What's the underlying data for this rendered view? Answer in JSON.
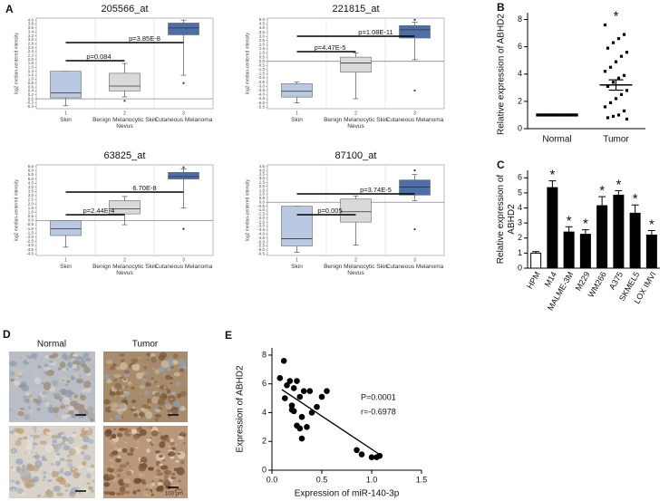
{
  "chart_data": [
    {
      "type": "box",
      "panel_label": "A",
      "title": "205566_at",
      "ylabel": "log2 median-centered intensity",
      "categories": [
        "Skin",
        "Benign Melanocytic Skin Nevus",
        "Cutaneous Melanoma"
      ],
      "category_numbers": [
        1,
        2,
        3
      ],
      "colors": [
        "#b9c9e2",
        "#d9d9d9",
        "#4d6fa9"
      ],
      "boxes": [
        {
          "min": -0.35,
          "q1": 0.05,
          "median": 0.3,
          "q3": 1.4,
          "max": 1.4,
          "outliers": []
        },
        {
          "min": 0.1,
          "q1": 0.4,
          "median": 0.65,
          "q3": 1.3,
          "max": 1.8,
          "outliers": [
            -0.1
          ]
        },
        {
          "min": 1.2,
          "q1": 3.25,
          "median": 3.6,
          "q3": 3.85,
          "max": 4.0,
          "outliers": [
            0.8
          ]
        }
      ],
      "ylim": [
        -0.5,
        4.1
      ],
      "yticks": [
        -0.4,
        -0.2,
        {
          "value": 0,
          "label": "0.0"
        },
        0.2,
        0.4,
        0.6,
        0.8,
        {
          "value": 1,
          "label": "1.0"
        },
        1.2,
        1.4,
        1.6,
        1.8,
        {
          "value": 2,
          "label": "2.0"
        },
        2.2,
        2.4,
        2.6,
        2.8,
        {
          "value": 3,
          "label": "3.0"
        },
        3.2,
        3.4,
        3.6,
        3.8,
        {
          "value": 4,
          "label": "4.0"
        }
      ],
      "reference_line": 0,
      "annotations": [
        "p=0.084",
        "p=3.85E-8"
      ]
    },
    {
      "type": "box",
      "title": "221815_at",
      "ylabel": "log2 median-centered intensity",
      "categories": [
        "Skin",
        "Benign Melanocytic Skin Nevus",
        "Cutaneous Melanoma"
      ],
      "category_numbers": [
        1,
        2,
        3
      ],
      "colors": [
        "#b9c9e2",
        "#d9d9d9",
        "#4d6fa9"
      ],
      "boxes": [
        {
          "min": -5.0,
          "q1": -4.3,
          "median": -3.6,
          "q3": -2.7,
          "max": -2.5,
          "outliers": []
        },
        {
          "min": -4.5,
          "q1": -1.3,
          "median": -0.2,
          "q3": 0.5,
          "max": 1.0,
          "outliers": []
        },
        {
          "min": 0.2,
          "q1": 2.8,
          "median": 3.8,
          "q3": 4.3,
          "max": 4.7,
          "outliers": [
            -3.5,
            5.0
          ]
        }
      ],
      "ylim": [
        -5.7,
        5.2
      ],
      "yticks": [
        -5.5,
        {
          "value": -5,
          "label": "-5.0"
        },
        -4.5,
        {
          "value": -4,
          "label": "-4.0"
        },
        -3.5,
        {
          "value": -3,
          "label": "-3.0"
        },
        -2.5,
        {
          "value": -2,
          "label": "-2.0"
        },
        -1.5,
        {
          "value": -1,
          "label": "-1.0"
        },
        -0.5,
        {
          "value": 0,
          "label": "0.0"
        },
        0.5,
        {
          "value": 1,
          "label": "1.0"
        },
        1.5,
        {
          "value": 2,
          "label": "2.0"
        },
        2.5,
        {
          "value": 3,
          "label": "3.0"
        },
        3.5,
        {
          "value": 4,
          "label": "4.0"
        },
        4.5,
        {
          "value": 5,
          "label": "5.0"
        }
      ],
      "reference_line": 0,
      "annotations": [
        "p=4.47E-5",
        "p=1.08E-11"
      ]
    },
    {
      "type": "box",
      "title": "63825_at",
      "ylabel": "log2 median-centered intensity",
      "categories": [
        "Skin",
        "Benign Melanocytic Skin Nevus",
        "Cutaneous Melanoma"
      ],
      "category_numbers": [
        1,
        2,
        3
      ],
      "colors": [
        "#b9c9e2",
        "#d9d9d9",
        "#4d6fa9"
      ],
      "boxes": [
        {
          "min": -3.2,
          "q1": -1.8,
          "median": -1.0,
          "q3": 0.0,
          "max": 0.0,
          "outliers": []
        },
        {
          "min": -0.5,
          "q1": 0.8,
          "median": 1.4,
          "q3": 2.4,
          "max": 2.9,
          "outliers": []
        },
        {
          "min": 1.5,
          "q1": 5.0,
          "median": 5.3,
          "q3": 5.8,
          "max": 6.2,
          "outliers": [
            -1.0,
            6.4
          ]
        }
      ],
      "ylim": [
        -4.2,
        6.7
      ],
      "yticks": [
        {
          "value": -4,
          "label": "-4.0"
        },
        -3.5,
        {
          "value": -3,
          "label": "-3.0"
        },
        -2.5,
        {
          "value": -2,
          "label": "-2.0"
        },
        -1.5,
        {
          "value": -1,
          "label": "-1.0"
        },
        -0.5,
        {
          "value": 0,
          "label": "0.0"
        },
        0.5,
        {
          "value": 1,
          "label": "1.0"
        },
        1.5,
        {
          "value": 2,
          "label": "2.0"
        },
        2.5,
        {
          "value": 3,
          "label": "3.0"
        },
        3.5,
        {
          "value": 4,
          "label": "4.0"
        },
        4.5,
        {
          "value": 5,
          "label": "5.0"
        },
        5.5,
        {
          "value": 6,
          "label": "6.0"
        },
        6.5
      ],
      "reference_line": 0,
      "annotations": [
        "p=2.44E-4",
        "6.70E-8"
      ]
    },
    {
      "type": "box",
      "title": "87100_at",
      "ylabel": "log2 median-centered intensity",
      "categories": [
        "Skin",
        "Benign Melanocytic Skin Nevus",
        "Cutaneous Melanoma"
      ],
      "category_numbers": [
        1,
        2,
        3
      ],
      "colors": [
        "#b9c9e2",
        "#d9d9d9",
        "#4d6fa9"
      ],
      "boxes": [
        {
          "min": -6.3,
          "q1": -5.5,
          "median": -4.6,
          "q3": -0.5,
          "max": -0.5,
          "outliers": []
        },
        {
          "min": -5.4,
          "q1": -2.5,
          "median": -1.2,
          "q3": 0.4,
          "max": 0.8,
          "outliers": []
        },
        {
          "min": 0.2,
          "q1": 0.9,
          "median": 1.9,
          "q3": 2.8,
          "max": 3.5,
          "outliers": [
            -3.4,
            4.0
          ]
        }
      ],
      "ylim": [
        -6.7,
        4.7
      ],
      "yticks": [
        -6.5,
        {
          "value": -6,
          "label": "-6.0"
        },
        -5.5,
        {
          "value": -5,
          "label": "-5.0"
        },
        -4.5,
        {
          "value": -4,
          "label": "-4.0"
        },
        -3.5,
        {
          "value": -3,
          "label": "-3.0"
        },
        -2.5,
        {
          "value": -2,
          "label": "-2.0"
        },
        -1.5,
        {
          "value": -1,
          "label": "-1.0"
        },
        -0.5,
        {
          "value": 0,
          "label": "0.0"
        },
        0.5,
        {
          "value": 1,
          "label": "1.0"
        },
        1.5,
        {
          "value": 2,
          "label": "2.0"
        },
        2.5,
        {
          "value": 3,
          "label": "3.0"
        },
        3.5,
        {
          "value": 4,
          "label": "4.0"
        },
        4.5
      ],
      "reference_line": 0,
      "annotations": [
        "p=0.005",
        "p=3.74E-5"
      ]
    },
    {
      "type": "dot",
      "panel_label": "B",
      "ylabel": "Relative expression of ABHD2",
      "categories": [
        "Normal",
        "Tumor"
      ],
      "groups": [
        [
          1,
          1,
          1,
          1,
          1,
          1,
          1,
          1,
          1,
          1,
          1,
          1,
          1,
          1,
          1,
          1,
          1,
          1,
          1,
          1,
          1,
          1,
          1,
          1,
          1
        ],
        [
          7.6,
          6.9,
          6.6,
          6.3,
          5.9,
          5.6,
          5.3,
          4.9,
          4.5,
          4.2,
          3.9,
          3.7,
          3.4,
          3.1,
          2.8,
          2.5,
          2.2,
          1.9,
          1.6,
          1.3,
          1.0,
          0.9,
          0.8,
          0.7
        ]
      ],
      "means": [
        1,
        3.2
      ],
      "sem": [
        0.02,
        0.38
      ],
      "significance": [
        null,
        "*"
      ],
      "color": "#000000",
      "ylim": [
        0,
        8.5
      ],
      "yticks": [
        0,
        2,
        4,
        6,
        8
      ]
    },
    {
      "type": "bar",
      "panel_label": "C",
      "ylabel": "Relative expression of ABHD2",
      "categories": [
        "HPM",
        "M14",
        "MALME-3M",
        "M229",
        "WM266",
        "A375",
        "SKMEL5",
        "LOX IMVI"
      ],
      "values": [
        1.0,
        5.35,
        2.4,
        2.25,
        4.15,
        4.85,
        3.65,
        2.2
      ],
      "errors": [
        0.1,
        0.45,
        0.35,
        0.3,
        0.6,
        0.3,
        0.55,
        0.3
      ],
      "significance": [
        null,
        "*",
        "*",
        "*",
        "*",
        "*",
        "*",
        "*"
      ],
      "colors": [
        "#ffffff",
        "#000000",
        "#000000",
        "#000000",
        "#000000",
        "#000000",
        "#000000",
        "#000000"
      ],
      "ylim": [
        0,
        6.5
      ],
      "yticks": [
        0,
        1,
        2,
        3,
        4,
        5,
        6
      ]
    },
    {
      "type": "scatter",
      "panel_label": "E",
      "xlabel": "Expression of miR-140-3p",
      "ylabel": "Expression of ABHD2",
      "x": [
        0.08,
        0.12,
        0.13,
        0.18,
        0.2,
        0.22,
        0.25,
        0.28,
        0.3,
        0.32,
        0.35,
        0.38,
        0.4,
        0.22,
        0.2,
        0.3,
        0.25,
        0.45,
        0.5,
        0.55,
        0.85,
        0.9,
        1.0,
        1.05,
        1.08,
        0.15,
        0.28
      ],
      "y": [
        6.4,
        7.6,
        5.0,
        6.2,
        4.2,
        5.7,
        6.2,
        5.1,
        2.2,
        5.5,
        3.0,
        5.5,
        4.0,
        4.1,
        4.5,
        3.7,
        3.1,
        4.4,
        5.1,
        5.5,
        1.4,
        1.1,
        0.9,
        0.9,
        1.0,
        5.9,
        2.9
      ],
      "trend_x": [
        0.1,
        1.1
      ],
      "trend_y": [
        5.6,
        1.0
      ],
      "color": "#000000",
      "annotations": [
        "P=0.0001",
        "r=-0.6978"
      ],
      "xlim": [
        0,
        1.5
      ],
      "xticks": [
        {
          "value": 0,
          "label": "0.0"
        },
        0.5,
        {
          "value": 1,
          "label": "1.0"
        },
        1.5
      ],
      "ylim": [
        0,
        8.5
      ],
      "yticks": [
        0,
        2,
        4,
        6,
        8
      ]
    }
  ],
  "panel_d": {
    "panel_label": "D",
    "columns": [
      "Normal",
      "Tumor"
    ],
    "scale_bar": "100 μm"
  }
}
